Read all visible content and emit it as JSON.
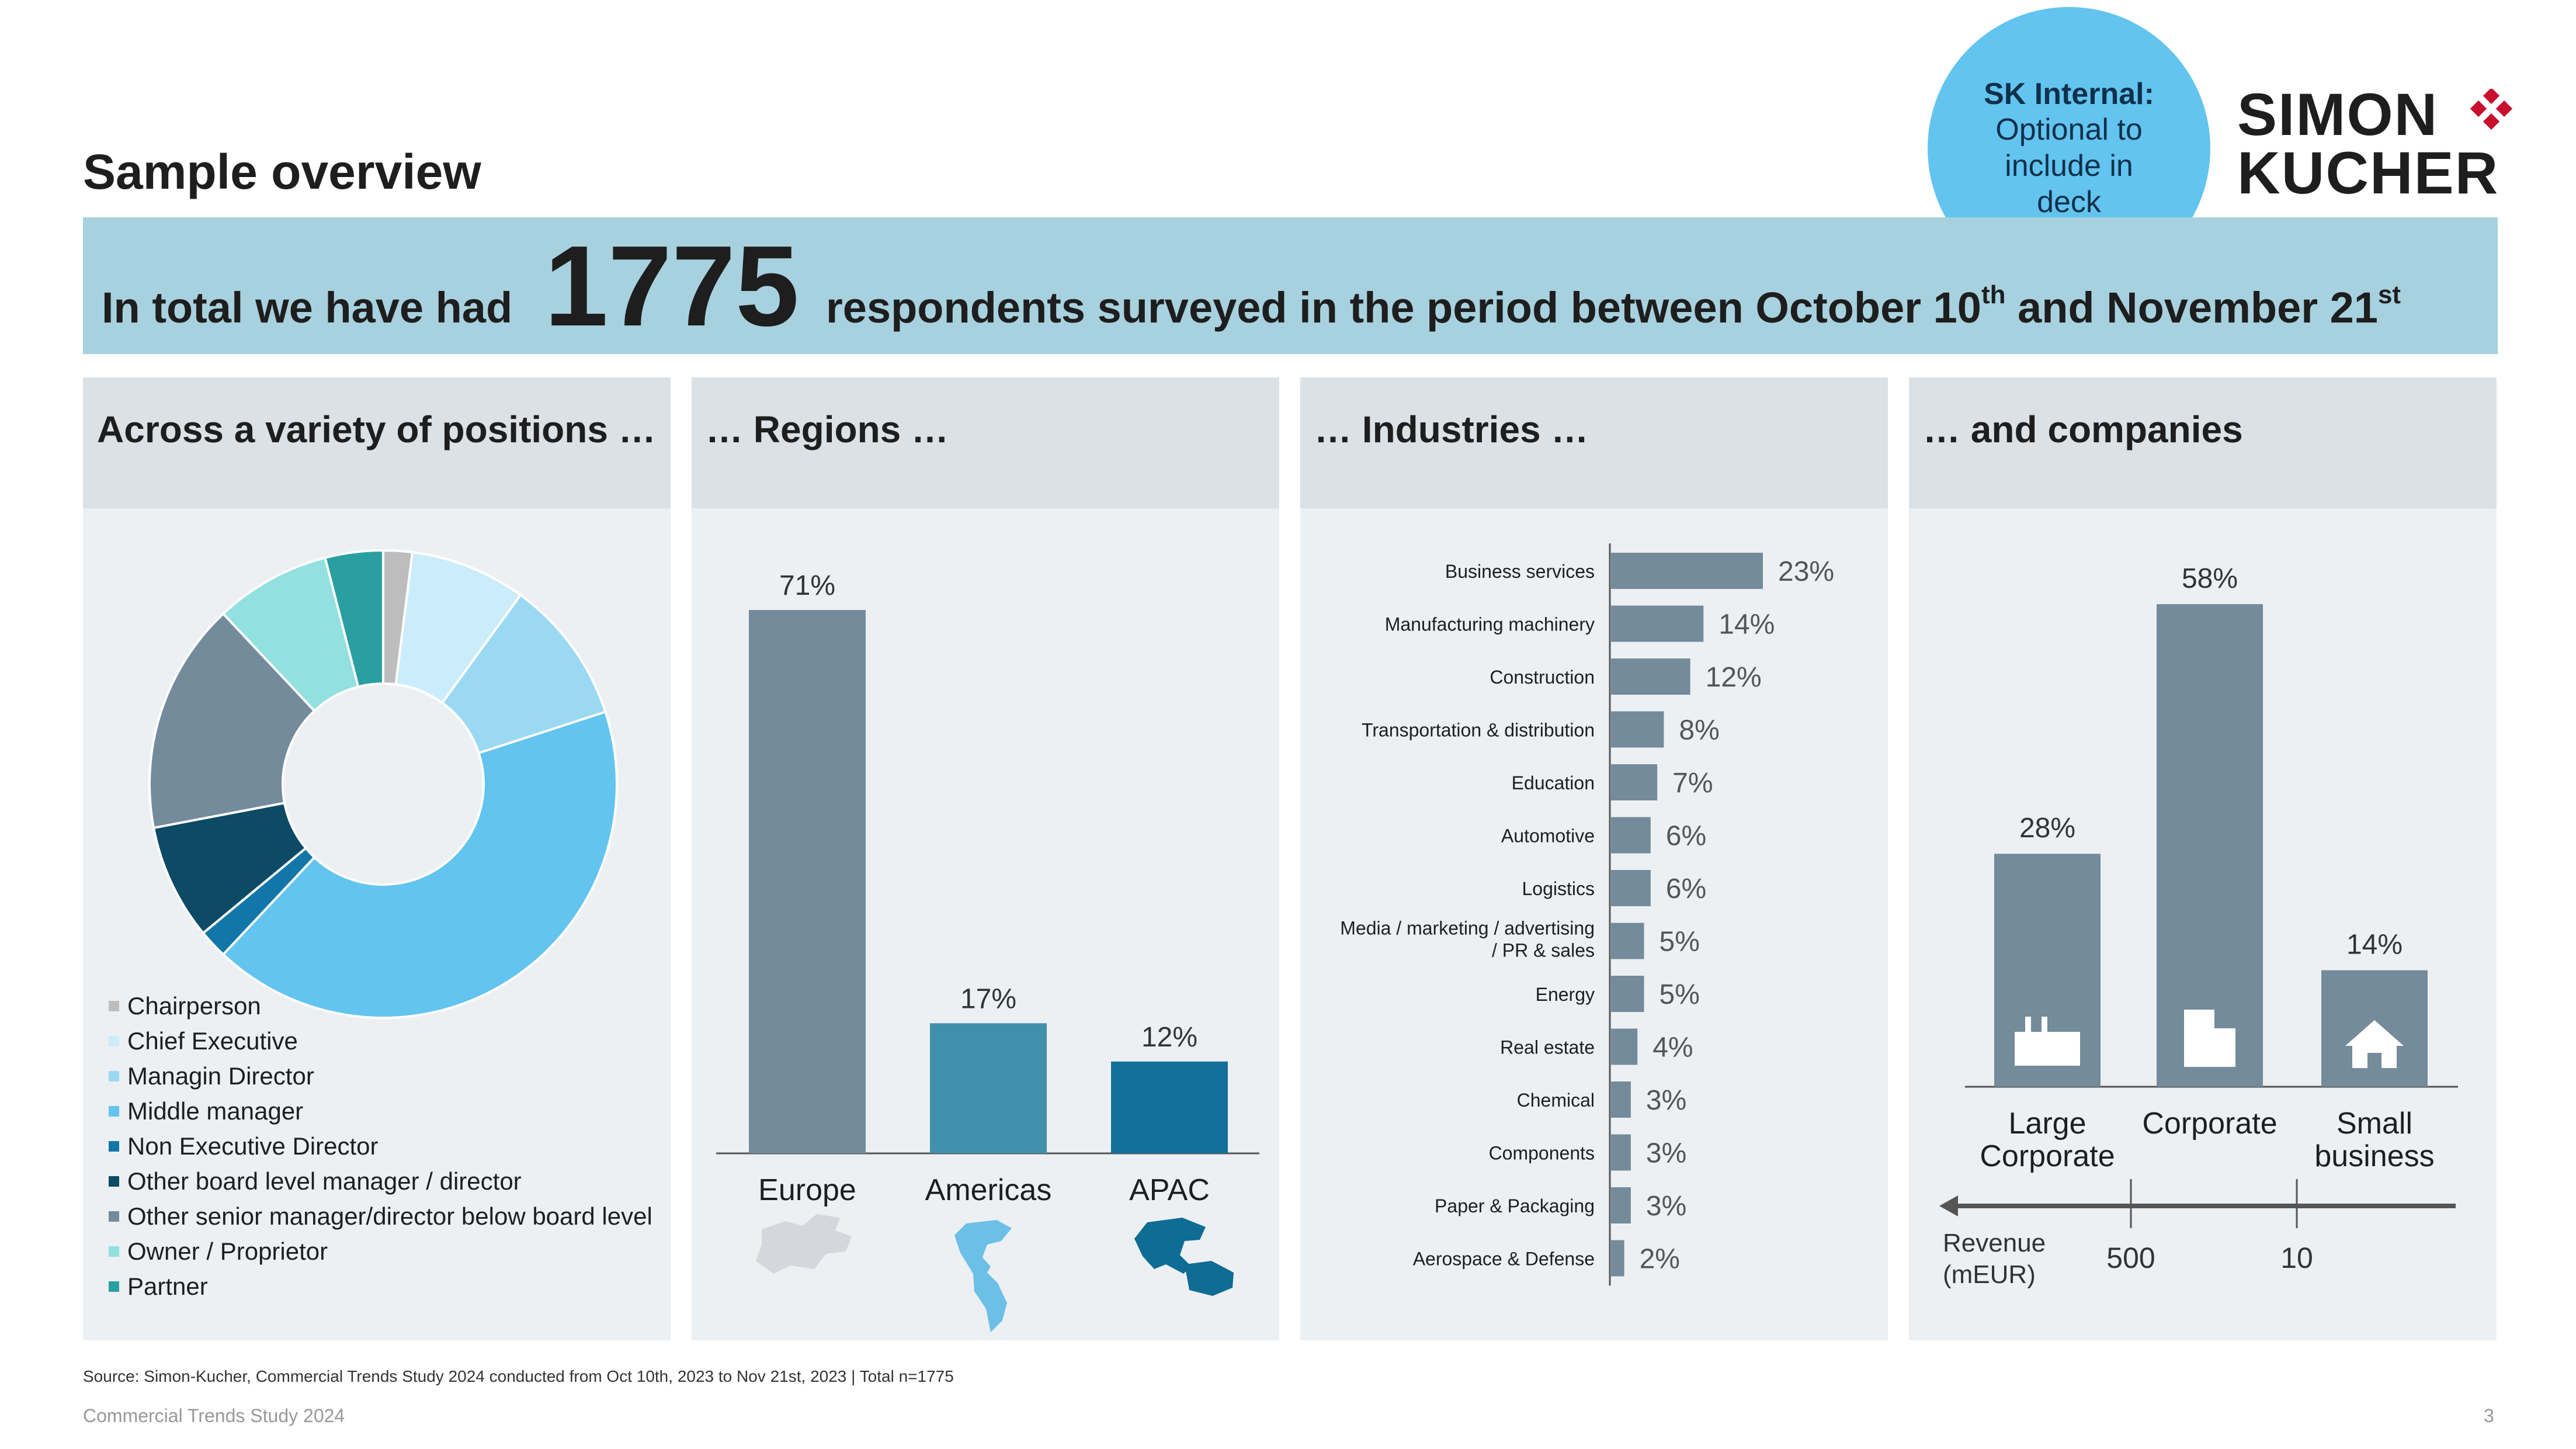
{
  "title": "Sample overview",
  "badge": {
    "bold": "SK Internal:",
    "text": "Optional to include in deck"
  },
  "logo": {
    "line1": "SIMON",
    "line2": "KUCHER"
  },
  "banner": {
    "lead": "In total we have had",
    "number": "1775",
    "rest_a": "respondents surveyed in the period between October 10",
    "sup_a": "th",
    "rest_b": " and November 21",
    "sup_b": "st"
  },
  "panels": {
    "positions": "Across a variety of positions …",
    "regions": "… Regions …",
    "industries": "… Industries …",
    "companies": "… and companies"
  },
  "colors": {
    "bar": "#738b9b",
    "americas": "#4090ab",
    "apac": "#12709a"
  },
  "chart_data": [
    {
      "type": "pie",
      "variant": "donut",
      "labels": [
        "Chairperson",
        "Chief Executive",
        "Managin Director",
        "Middle manager",
        "Non Executive Director",
        "Other board level manager / director",
        "Other senior manager/director below board level",
        "Owner / Proprietor",
        "Partner"
      ],
      "values": [
        2,
        8,
        10,
        42,
        2,
        8,
        16,
        8,
        4
      ],
      "colors": [
        "#bdbdbd",
        "#cbecfa",
        "#9bd9f3",
        "#62c4ef",
        "#1277a8",
        "#0c4a66",
        "#738b9b",
        "#92e0df",
        "#2a9fa1"
      ],
      "legend_position": "bottom-left"
    },
    {
      "type": "bar",
      "categories": [
        "Europe",
        "Americas",
        "APAC"
      ],
      "values": [
        71,
        17,
        12
      ],
      "data_labels": [
        "71%",
        "17%",
        "12%"
      ],
      "icons": [
        "europe-map-icon",
        "americas-map-icon",
        "apac-map-icon"
      ],
      "ylim": [
        0,
        75
      ]
    },
    {
      "type": "bar",
      "orientation": "horizontal",
      "categories": [
        "Business services",
        "Manufacturing machinery",
        "Construction",
        "Transportation & distribution",
        "Education",
        "Automotive",
        "Logistics",
        "Media / marketing / advertising / PR & sales",
        "Energy",
        "Real estate",
        "Chemical",
        "Components",
        "Paper & Packaging",
        "Aerospace & Defense"
      ],
      "values": [
        23,
        14,
        12,
        8,
        7,
        6,
        6,
        5,
        5,
        4,
        3,
        3,
        3,
        2
      ],
      "data_labels": [
        "23%",
        "14%",
        "12%",
        "8%",
        "7%",
        "6%",
        "6%",
        "5%",
        "5%",
        "4%",
        "3%",
        "3%",
        "3%",
        "2%"
      ],
      "xlim": [
        0,
        25
      ]
    },
    {
      "type": "bar",
      "categories": [
        "Large Corporate",
        "Corporate",
        "Small business"
      ],
      "values": [
        28,
        58,
        14
      ],
      "data_labels": [
        "28%",
        "58%",
        "14%"
      ],
      "icons": [
        "factory-icon",
        "office-building-icon",
        "house-icon"
      ],
      "axis_label": "Revenue (mEUR)",
      "thresholds": [
        "500",
        "10"
      ],
      "ylim": [
        0,
        60
      ]
    }
  ],
  "source": "Source: Simon-Kucher, Commercial Trends Study 2024 conducted from Oct 10th, 2023 to Nov 21st, 2023 | Total n=1775",
  "footer": "Commercial Trends Study 2024",
  "page_number": "3"
}
